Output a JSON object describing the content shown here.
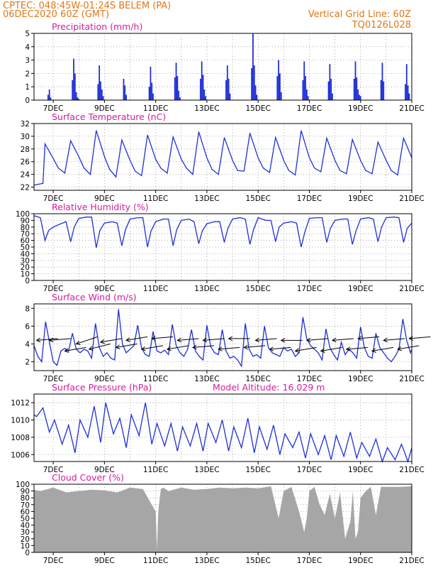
{
  "header": {
    "left_line1": "CPTEC:   048:45W-01:24S   BELEM (PA)",
    "left_line2": "06DEC2020 60Z (GMT)",
    "right_line1": "Vertical Grid Line: 60Z",
    "right_line2": "TQ0126L028"
  },
  "colors": {
    "header": "#e07818",
    "title": "#d81aa0",
    "series": "#1f2fd6",
    "cloud": "#a6a6a6",
    "grid": "#9a9a9a",
    "wind_arrow": "#000000"
  },
  "x_axis": {
    "tick_labels": [
      "7DEC",
      "9DEC",
      "11DEC",
      "13DEC",
      "15DEC",
      "17DEC",
      "19DEC",
      "21DEC"
    ],
    "tick_days": [
      7,
      9,
      11,
      13,
      15,
      17,
      19,
      21
    ],
    "range_days": [
      6.25,
      21.0
    ],
    "grid_days": [
      7,
      8,
      9,
      10,
      11,
      12,
      13,
      14,
      15,
      16,
      17,
      18,
      19,
      20,
      21
    ]
  },
  "chart_data": [
    {
      "type": "bar",
      "title": "Precipitation (mm/h)",
      "ylim": [
        0,
        5
      ],
      "yticks": [
        0,
        1,
        2,
        3,
        4,
        5
      ],
      "x_days": [
        6.8,
        6.85,
        6.9,
        7.75,
        7.8,
        7.85,
        7.9,
        7.95,
        8.0,
        8.75,
        8.8,
        8.85,
        8.9,
        8.95,
        9.75,
        9.8,
        9.85,
        10.75,
        10.8,
        10.85,
        10.9,
        11.75,
        11.8,
        11.85,
        11.9,
        11.95,
        12.75,
        12.8,
        12.85,
        12.9,
        12.95,
        13.75,
        13.8,
        13.85,
        13.9,
        14.75,
        14.8,
        14.85,
        14.9,
        14.95,
        15.75,
        15.8,
        15.85,
        15.9,
        16.75,
        16.8,
        16.85,
        16.9,
        16.95,
        17.75,
        17.8,
        17.85,
        17.9,
        18.75,
        18.8,
        18.85,
        18.9,
        18.95,
        19.0,
        19.8,
        19.85,
        19.9,
        20.75,
        20.8,
        20.85,
        20.9
      ],
      "values": [
        0.4,
        0.8,
        0.2,
        1.5,
        3.1,
        2.0,
        0.6,
        0.2,
        0.1,
        1.2,
        2.6,
        1.4,
        0.8,
        0.3,
        1.6,
        1.1,
        0.4,
        1.0,
        2.5,
        1.3,
        0.5,
        1.7,
        2.8,
        1.8,
        0.7,
        0.2,
        1.6,
        2.9,
        1.9,
        0.8,
        0.3,
        1.5,
        2.6,
        1.6,
        0.5,
        2.4,
        5.0,
        2.6,
        1.1,
        0.4,
        1.8,
        3.0,
        2.0,
        0.6,
        1.5,
        2.9,
        1.8,
        0.8,
        0.3,
        1.4,
        2.7,
        1.6,
        0.5,
        1.6,
        2.9,
        1.7,
        0.8,
        0.4,
        0.3,
        1.5,
        2.8,
        1.4,
        1.2,
        2.7,
        1.1,
        0.5
      ]
    },
    {
      "type": "line",
      "title": "Surface Temperature (nC)",
      "ylim": [
        21.5,
        32
      ],
      "yticks": [
        22,
        24,
        26,
        28,
        30,
        32
      ],
      "x_days": [
        6.25,
        6.5,
        6.6,
        6.68,
        7.0,
        7.2,
        7.45,
        7.68,
        8.0,
        8.2,
        8.45,
        8.68,
        9.0,
        9.2,
        9.45,
        9.68,
        10.0,
        10.2,
        10.45,
        10.68,
        11.0,
        11.2,
        11.45,
        11.68,
        12.0,
        12.2,
        12.45,
        12.68,
        13.0,
        13.2,
        13.45,
        13.68,
        14.0,
        14.2,
        14.45,
        14.68,
        15.0,
        15.2,
        15.45,
        15.68,
        16.0,
        16.2,
        16.45,
        16.68,
        17.0,
        17.2,
        17.45,
        17.68,
        18.0,
        18.2,
        18.45,
        18.68,
        19.0,
        19.2,
        19.45,
        19.68,
        20.0,
        20.2,
        20.45,
        20.68,
        21.0
      ],
      "values": [
        22.3,
        22.5,
        22.6,
        28.8,
        26.5,
        25.0,
        24.2,
        29.3,
        26.8,
        25.0,
        24.0,
        30.9,
        26.8,
        24.8,
        23.6,
        29.4,
        26.2,
        24.5,
        23.8,
        30.2,
        26.4,
        25.0,
        24.2,
        29.9,
        26.4,
        25.0,
        24.0,
        30.7,
        26.6,
        24.8,
        24.0,
        29.8,
        26.2,
        24.6,
        24.5,
        30.5,
        26.6,
        25.0,
        24.3,
        29.8,
        26.2,
        24.6,
        23.9,
        30.9,
        26.6,
        25.0,
        24.4,
        29.7,
        26.2,
        24.6,
        24.1,
        29.5,
        26.2,
        24.6,
        24.1,
        29.1,
        26.2,
        24.6,
        23.9,
        29.7,
        26.6
      ]
    },
    {
      "type": "line",
      "title": "Relative Humidity (%)",
      "ylim": [
        0,
        100
      ],
      "yticks": [
        0,
        10,
        20,
        30,
        40,
        50,
        60,
        70,
        80,
        90,
        100
      ],
      "x_days": [
        6.25,
        6.5,
        6.68,
        6.82,
        7.0,
        7.3,
        7.5,
        7.68,
        7.82,
        8.0,
        8.3,
        8.5,
        8.68,
        8.82,
        9.0,
        9.3,
        9.5,
        9.68,
        9.82,
        10.0,
        10.3,
        10.5,
        10.68,
        10.82,
        11.0,
        11.3,
        11.5,
        11.68,
        11.82,
        12.0,
        12.3,
        12.5,
        12.68,
        12.82,
        13.0,
        13.3,
        13.5,
        13.68,
        13.82,
        14.0,
        14.3,
        14.5,
        14.68,
        14.82,
        15.0,
        15.3,
        15.5,
        15.68,
        15.82,
        16.0,
        16.3,
        16.5,
        16.68,
        16.82,
        17.0,
        17.3,
        17.5,
        17.68,
        17.82,
        18.0,
        18.3,
        18.5,
        18.68,
        18.82,
        19.0,
        19.3,
        19.5,
        19.68,
        19.82,
        20.0,
        20.3,
        20.5,
        20.68,
        20.82,
        21.0
      ],
      "values": [
        97,
        94,
        60,
        75,
        80,
        85,
        88,
        58,
        80,
        93,
        95,
        95,
        49,
        75,
        86,
        88,
        86,
        52,
        76,
        92,
        94,
        94,
        50,
        74,
        88,
        92,
        92,
        52,
        76,
        90,
        92,
        88,
        55,
        74,
        85,
        88,
        88,
        57,
        78,
        92,
        94,
        92,
        54,
        76,
        94,
        90,
        90,
        58,
        80,
        86,
        88,
        86,
        50,
        72,
        93,
        94,
        94,
        57,
        78,
        90,
        92,
        92,
        54,
        74,
        92,
        94,
        92,
        58,
        80,
        94,
        95,
        94,
        57,
        78,
        86
      ]
    },
    {
      "type": "line",
      "title": "Surface Wind (m/s)",
      "ylim": [
        1,
        8.5
      ],
      "yticks": [
        2,
        4,
        6,
        8
      ],
      "x_days": [
        6.25,
        6.4,
        6.55,
        6.7,
        6.85,
        7.0,
        7.15,
        7.3,
        7.45,
        7.6,
        7.75,
        7.9,
        8.05,
        8.2,
        8.35,
        8.5,
        8.65,
        8.8,
        8.95,
        9.1,
        9.25,
        9.4,
        9.55,
        9.7,
        9.85,
        10.0,
        10.15,
        10.3,
        10.45,
        10.6,
        10.75,
        10.9,
        11.05,
        11.2,
        11.35,
        11.5,
        11.65,
        11.8,
        11.95,
        12.1,
        12.25,
        12.4,
        12.55,
        12.7,
        12.85,
        13.0,
        13.15,
        13.3,
        13.45,
        13.6,
        13.75,
        13.9,
        14.05,
        14.2,
        14.35,
        14.5,
        14.65,
        14.8,
        14.95,
        15.1,
        15.25,
        15.4,
        15.55,
        15.7,
        15.85,
        16.0,
        16.15,
        16.3,
        16.45,
        16.6,
        16.75,
        16.9,
        17.05,
        17.2,
        17.35,
        17.5,
        17.65,
        17.8,
        17.95,
        18.1,
        18.25,
        18.4,
        18.55,
        18.7,
        18.85,
        19.0,
        19.15,
        19.3,
        19.45,
        19.6,
        19.75,
        19.9,
        20.05,
        20.2,
        20.35,
        20.5,
        20.65,
        20.8,
        20.95,
        21.0
      ],
      "values": [
        3.8,
        2.6,
        2.0,
        6.5,
        4.2,
        2.0,
        1.6,
        3.2,
        3.5,
        3.2,
        5.2,
        3.4,
        3.0,
        3.4,
        3.2,
        2.4,
        6.3,
        3.6,
        2.6,
        3.0,
        2.4,
        2.2,
        7.9,
        4.0,
        3.0,
        3.4,
        3.8,
        6.1,
        3.5,
        2.8,
        2.6,
        5.4,
        3.2,
        3.0,
        3.3,
        2.8,
        6.2,
        3.8,
        3.0,
        2.6,
        3.4,
        5.6,
        3.2,
        2.6,
        2.2,
        6.1,
        3.7,
        3.0,
        2.8,
        5.6,
        3.2,
        2.4,
        2.6,
        2.2,
        1.5,
        6.3,
        3.4,
        2.6,
        2.8,
        2.4,
        6.0,
        3.6,
        3.0,
        2.8,
        2.6,
        3.6,
        3.2,
        3.4,
        2.6,
        3.0,
        7.0,
        4.6,
        3.8,
        3.4,
        3.0,
        2.2,
        5.7,
        3.6,
        2.8,
        2.2,
        4.2,
        2.8,
        3.4,
        3.0,
        2.4,
        5.9,
        3.6,
        2.6,
        2.4,
        5.2,
        3.6,
        3.0,
        2.4,
        2.0,
        2.6,
        3.4,
        6.8,
        4.4,
        3.0,
        3.4
      ],
      "arrow_days": [
        6.35,
        6.85,
        7.45,
        7.9,
        8.4,
        8.85,
        9.45,
        9.85,
        10.45,
        10.85,
        11.45,
        11.85,
        12.45,
        12.85,
        13.45,
        13.85,
        14.45,
        14.9,
        15.45,
        15.9,
        16.45,
        16.9,
        17.45,
        17.9,
        18.45,
        18.9,
        19.45,
        19.9,
        20.45,
        20.9
      ],
      "arrow_tips": [
        4.4,
        4.4,
        3.2,
        4.0,
        3.4,
        4.2,
        3.6,
        4.4,
        3.4,
        4.6,
        3.4,
        4.4,
        3.6,
        4.4,
        3.4,
        4.6,
        3.6,
        4.4,
        3.4,
        4.4,
        3.2,
        4.4,
        3.2,
        4.4,
        3.4,
        4.6,
        3.2,
        4.4,
        3.4,
        4.6
      ],
      "arrow_tails": [
        4.6,
        4.6,
        3.6,
        4.8,
        4.0,
        4.6,
        4.0,
        4.8,
        3.8,
        4.8,
        3.8,
        4.6,
        3.8,
        4.6,
        3.6,
        4.6,
        3.8,
        4.6,
        3.6,
        4.4,
        3.6,
        4.6,
        3.6,
        4.6,
        3.6,
        4.8,
        3.6,
        4.6,
        3.8,
        4.8
      ]
    },
    {
      "type": "line",
      "title": "Surface Pressure (hPa)",
      "annotation": "Model Altitude: 16.029  m",
      "ylim": [
        1005.2,
        1013
      ],
      "yticks": [
        1006,
        1008,
        1010,
        1012
      ],
      "x_days": [
        6.25,
        6.35,
        6.6,
        6.85,
        7.05,
        7.35,
        7.6,
        7.85,
        8.05,
        8.35,
        8.6,
        8.85,
        9.05,
        9.35,
        9.6,
        9.85,
        10.05,
        10.35,
        10.6,
        10.85,
        11.05,
        11.35,
        11.6,
        11.85,
        12.05,
        12.35,
        12.6,
        12.85,
        13.05,
        13.35,
        13.6,
        13.85,
        14.05,
        14.35,
        14.6,
        14.85,
        15.05,
        15.35,
        15.6,
        15.85,
        16.05,
        16.35,
        16.6,
        16.85,
        17.05,
        17.35,
        17.6,
        17.85,
        18.05,
        18.35,
        18.6,
        18.85,
        19.05,
        19.35,
        19.6,
        19.85,
        20.05,
        20.35,
        20.6,
        20.85,
        21.0
      ],
      "values": [
        1010.6,
        1010.4,
        1011.4,
        1008.6,
        1010.0,
        1007.2,
        1009.4,
        1006.2,
        1010.0,
        1008.0,
        1011.6,
        1007.4,
        1012.0,
        1008.4,
        1010.2,
        1006.8,
        1010.6,
        1008.2,
        1012.0,
        1007.2,
        1009.6,
        1007.0,
        1009.6,
        1006.4,
        1009.2,
        1007.0,
        1009.6,
        1006.4,
        1009.6,
        1007.4,
        1010.0,
        1006.4,
        1009.2,
        1006.8,
        1010.2,
        1006.2,
        1009.2,
        1006.6,
        1009.4,
        1006.0,
        1008.4,
        1006.8,
        1008.6,
        1005.6,
        1008.4,
        1006.0,
        1008.2,
        1005.4,
        1008.2,
        1005.8,
        1008.6,
        1005.6,
        1007.4,
        1005.8,
        1007.8,
        1005.0,
        1006.8,
        1005.4,
        1007.2,
        1004.6,
        1006.8
      ]
    },
    {
      "type": "area",
      "title": "Cloud Cover (%)",
      "ylim": [
        0,
        100
      ],
      "yticks": [
        0,
        10,
        20,
        30,
        40,
        50,
        60,
        70,
        80,
        90,
        100
      ],
      "x_days": [
        6.25,
        6.5,
        7.0,
        7.5,
        8.0,
        8.5,
        9.0,
        9.5,
        10.0,
        10.5,
        11.0,
        11.05,
        11.1,
        11.2,
        11.3,
        11.5,
        12.0,
        12.5,
        13.0,
        13.5,
        14.0,
        14.5,
        15.0,
        15.5,
        15.8,
        16.0,
        16.3,
        16.6,
        16.8,
        16.9,
        17.0,
        17.2,
        17.4,
        17.6,
        17.8,
        18.0,
        18.2,
        18.4,
        18.6,
        18.7,
        18.8,
        18.9,
        19.0,
        19.2,
        19.4,
        19.6,
        19.8,
        20.0,
        20.5,
        21.0
      ],
      "values": [
        92,
        90,
        95,
        88,
        90,
        92,
        91,
        88,
        95,
        93,
        60,
        5,
        60,
        93,
        95,
        90,
        95,
        92,
        93,
        95,
        94,
        95,
        94,
        97,
        50,
        90,
        96,
        60,
        30,
        50,
        90,
        96,
        70,
        55,
        86,
        50,
        88,
        20,
        45,
        90,
        20,
        30,
        80,
        90,
        96,
        55,
        96,
        96,
        96,
        97
      ]
    }
  ]
}
